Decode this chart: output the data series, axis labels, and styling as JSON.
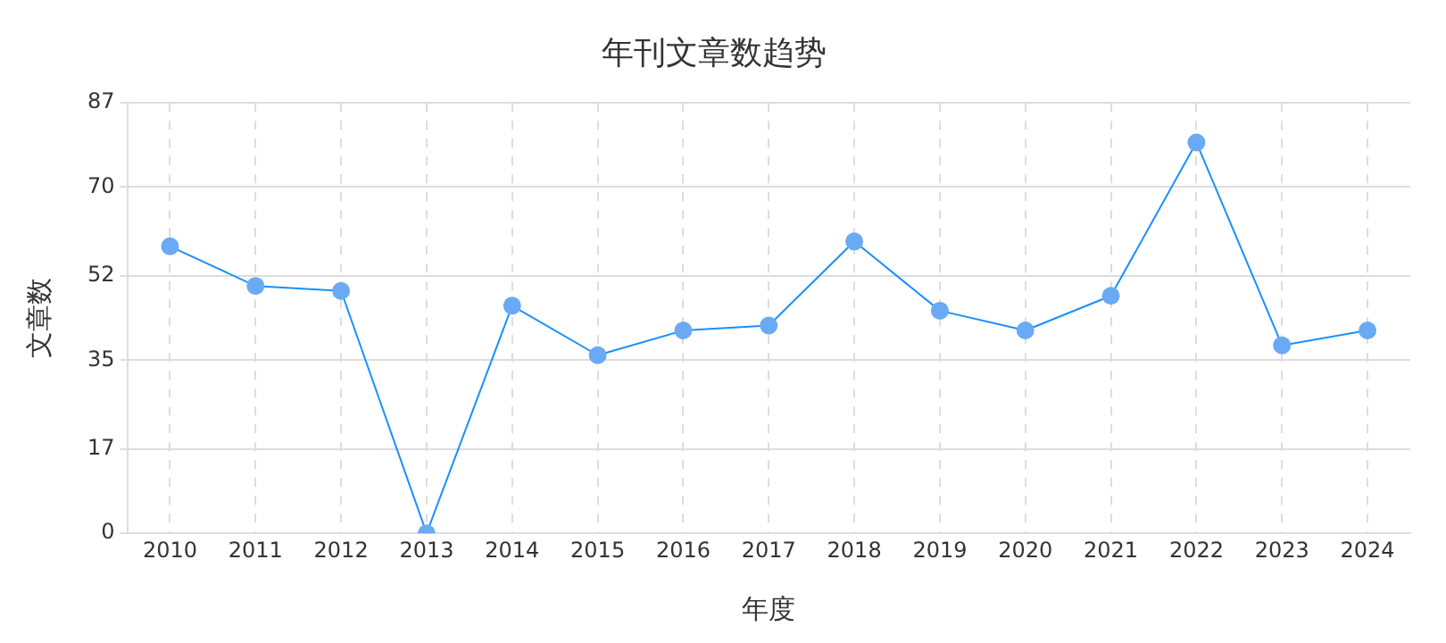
{
  "chart_data": {
    "type": "line",
    "title": "年刊文章数趋势",
    "xlabel": "年度",
    "ylabel": "文章数",
    "categories": [
      "2010",
      "2011",
      "2012",
      "2013",
      "2014",
      "2015",
      "2016",
      "2017",
      "2018",
      "2019",
      "2020",
      "2021",
      "2022",
      "2023",
      "2024"
    ],
    "series": [
      {
        "color": "#1890ff",
        "values": [
          58,
          50,
          49,
          0,
          46,
          36,
          41,
          42,
          59,
          45,
          41,
          48,
          79,
          38,
          41
        ]
      }
    ],
    "ylim": [
      0,
      87
    ],
    "yticks": [
      0,
      17,
      35,
      52,
      70,
      87
    ],
    "grid": true,
    "legend": false,
    "marker": "circle",
    "line_style": "solid"
  }
}
